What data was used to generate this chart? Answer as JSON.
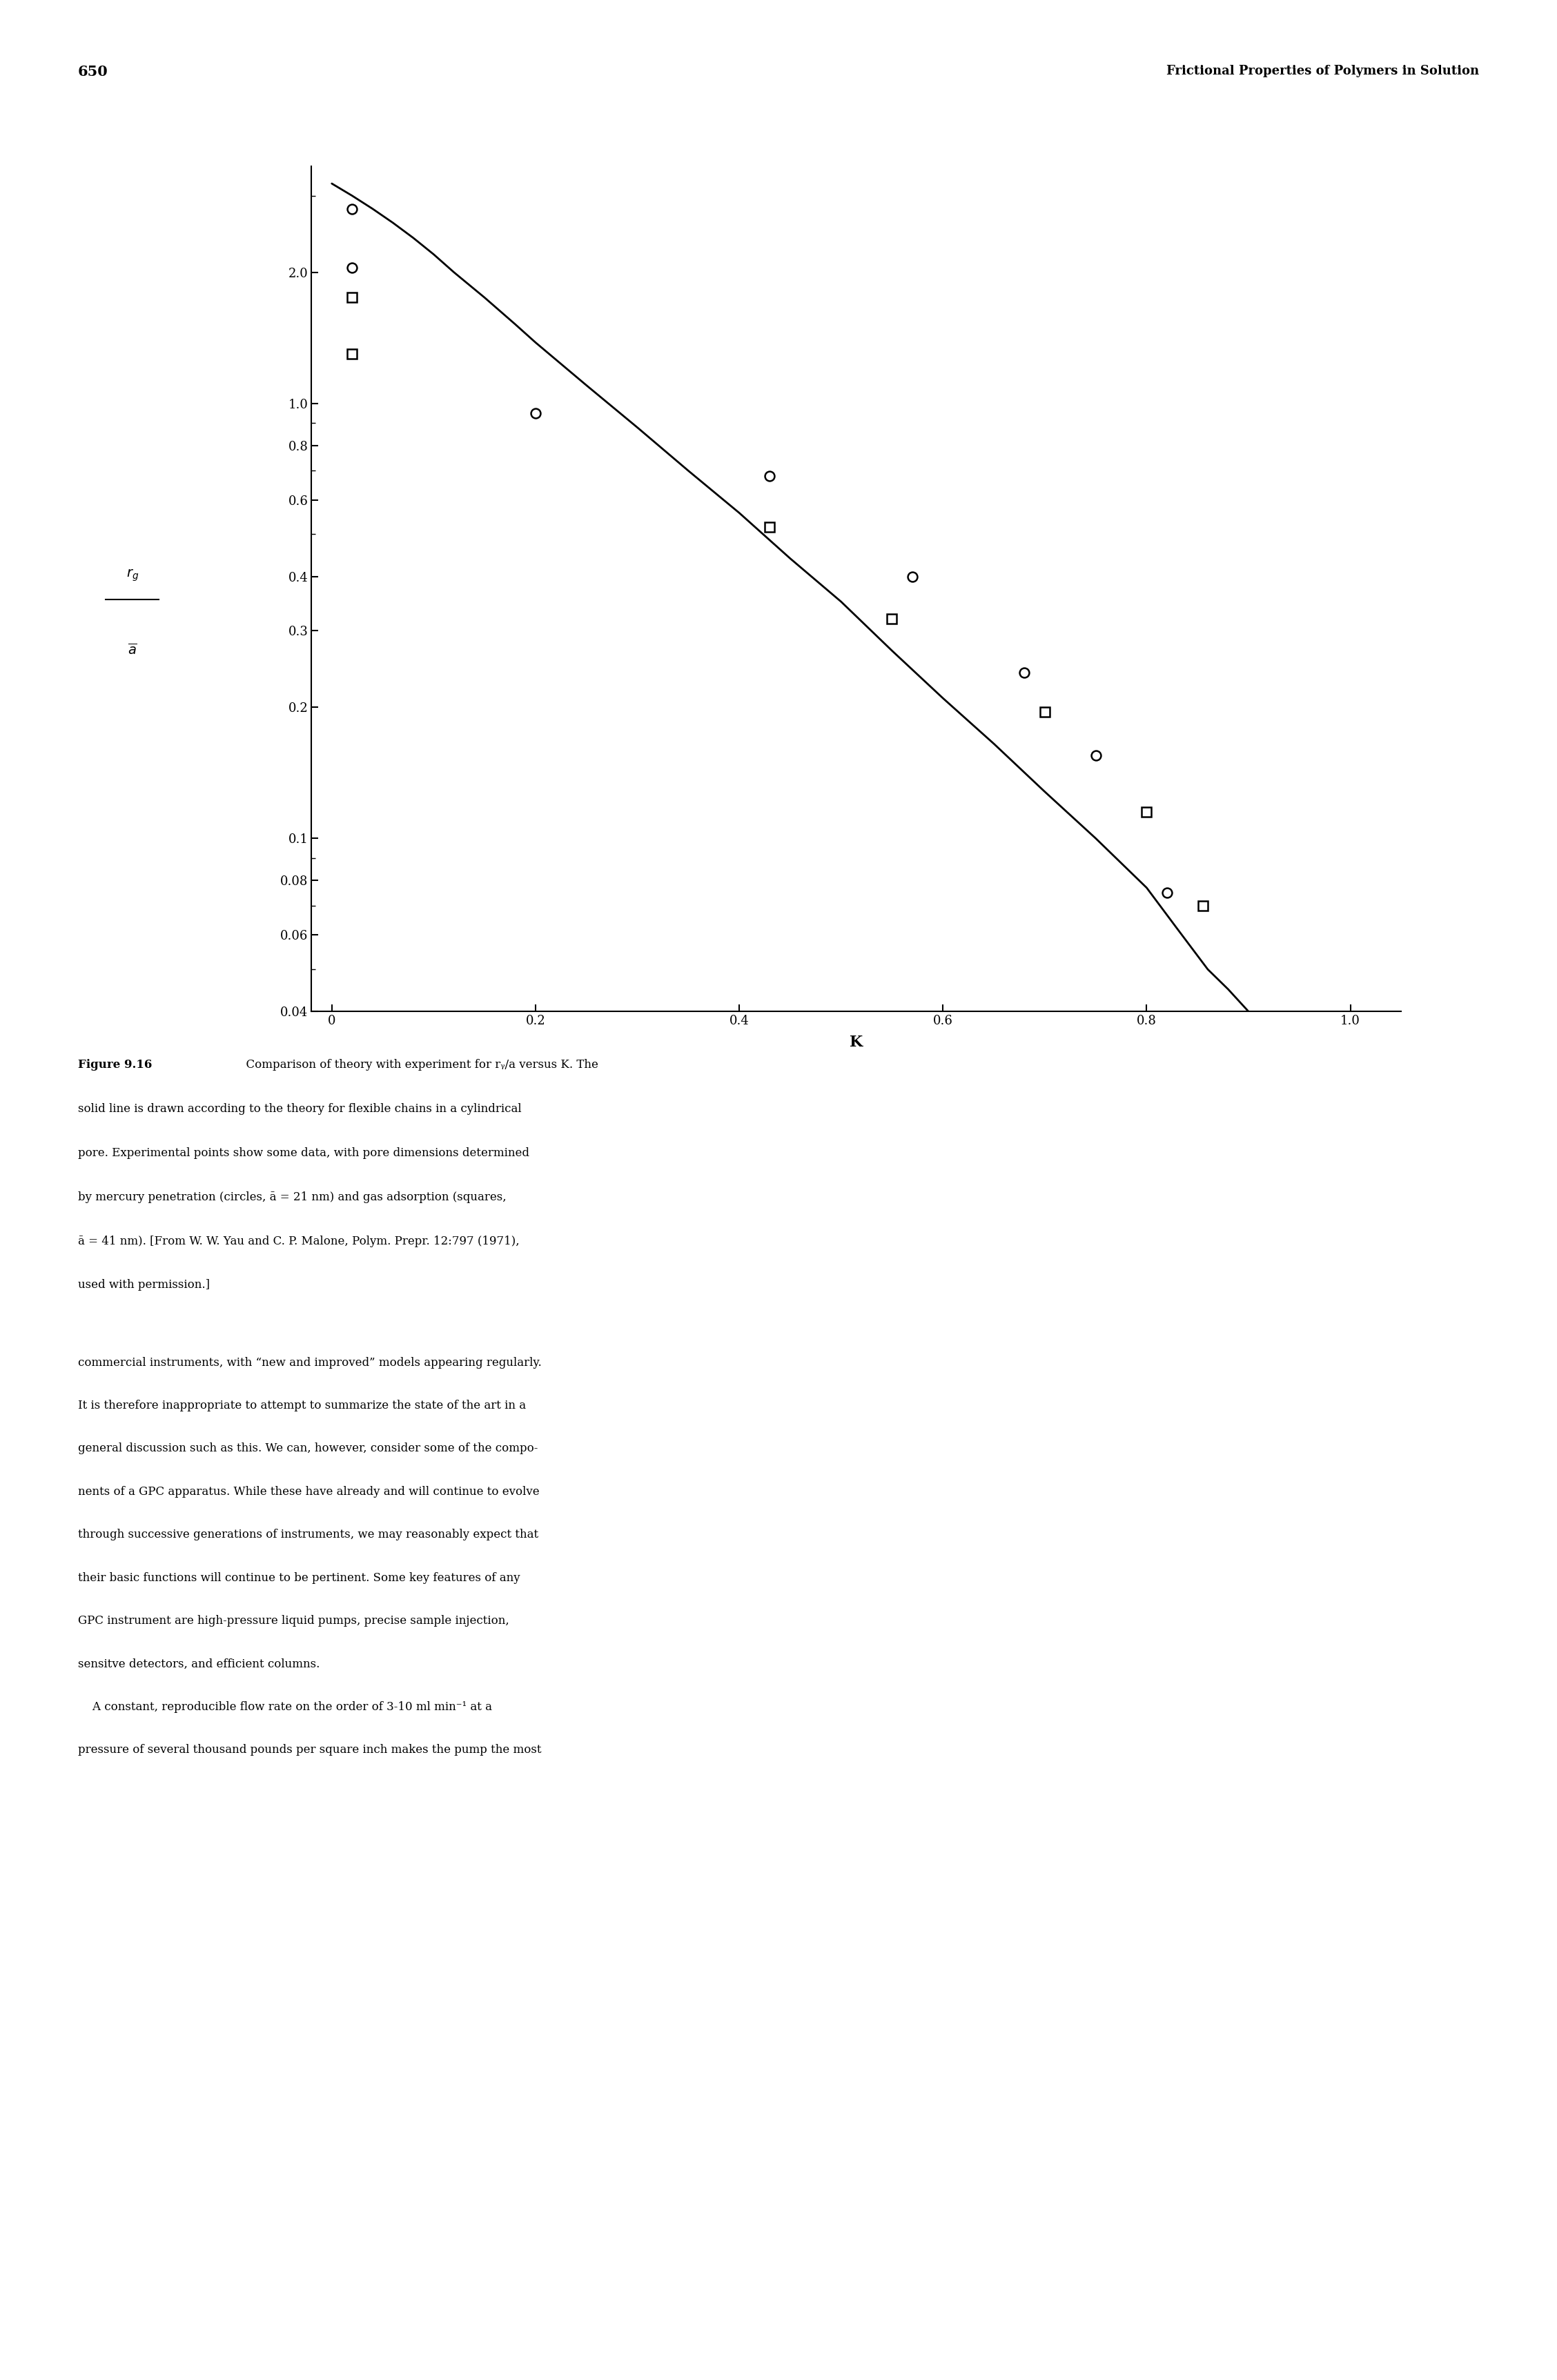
{
  "page_number": "650",
  "header_title": "Frictional Properties of Polymers in Solution",
  "xlabel": "K",
  "ylim_log": [
    0.04,
    3.5
  ],
  "xlim": [
    -0.02,
    1.05
  ],
  "yticks": [
    0.04,
    0.06,
    0.08,
    0.1,
    0.2,
    0.3,
    0.4,
    0.6,
    0.8,
    1.0,
    2.0
  ],
  "ytick_labels": [
    "0.04",
    "0.06",
    "0.08",
    "0.1",
    "0.2",
    "0.3",
    "0.4",
    "0.6",
    "0.8",
    "1.0",
    "2.0"
  ],
  "xticks": [
    0,
    0.2,
    0.4,
    0.6,
    0.8,
    1.0
  ],
  "xtick_labels": [
    "0",
    "0.2",
    "0.4",
    "0.6",
    "0.8",
    "1.0"
  ],
  "theory_K": [
    0.0,
    0.02,
    0.04,
    0.06,
    0.08,
    0.1,
    0.12,
    0.15,
    0.18,
    0.2,
    0.25,
    0.3,
    0.35,
    0.4,
    0.45,
    0.5,
    0.55,
    0.6,
    0.65,
    0.7,
    0.75,
    0.8,
    0.83,
    0.86,
    0.88,
    0.9
  ],
  "theory_rg_a": [
    3.2,
    3.0,
    2.8,
    2.6,
    2.4,
    2.2,
    2.0,
    1.75,
    1.52,
    1.38,
    1.1,
    0.88,
    0.7,
    0.56,
    0.44,
    0.35,
    0.27,
    0.21,
    0.165,
    0.128,
    0.1,
    0.077,
    0.062,
    0.05,
    0.045,
    0.04
  ],
  "circles_K": [
    0.02,
    0.02,
    0.2,
    0.43,
    0.57,
    0.68,
    0.75,
    0.82
  ],
  "circles_rg_a": [
    2.8,
    2.05,
    0.95,
    0.68,
    0.4,
    0.24,
    0.155,
    0.075
  ],
  "squares_K": [
    0.02,
    0.02,
    0.43,
    0.55,
    0.7,
    0.8,
    0.855
  ],
  "squares_rg_a": [
    1.75,
    1.3,
    0.52,
    0.32,
    0.195,
    0.115,
    0.07
  ],
  "caption_bold": "Figure 9.16",
  "caption_normal": "  Comparison of theory with experiment for rₕ/a versus K. The solid line is drawn according to the theory for flexible chains in a cylindrical pore. Experimental points show some data, with pore dimensions determined by mercury penetration (circles, ā = 21 nm) and gas adsorption (squares, ā = 41 nm). [From W. W. Yau and C. P. Malone, Polym. Prepr. 12:797 (1971), used with permission.]",
  "body_line1": "commercial instruments, with “new and improved” models appearing regularly.",
  "body_line2": "It is therefore inappropriate to attempt to summarize the state of the art in a",
  "body_line3": "general discussion such as this. We can, however, consider some of the compo-",
  "body_line4": "nents of a GPC apparatus. While these have already and will continue to evolve",
  "body_line5": "through successive generations of instruments, we may reasonably expect that",
  "body_line6": "their basic functions will continue to be pertinent. Some key features of any",
  "body_line7": "GPC instrument are high-pressure liquid pumps, precise sample injection,",
  "body_line8": "sensitve detectors, and efficient columns.",
  "body_line9": "    A constant, reproducible flow rate on the order of 3-10 ml min⁻¹ at a",
  "body_line10": "pressure of several thousand pounds per square inch makes the pump the most",
  "bg_color": "#ffffff",
  "marker_color": "#000000"
}
